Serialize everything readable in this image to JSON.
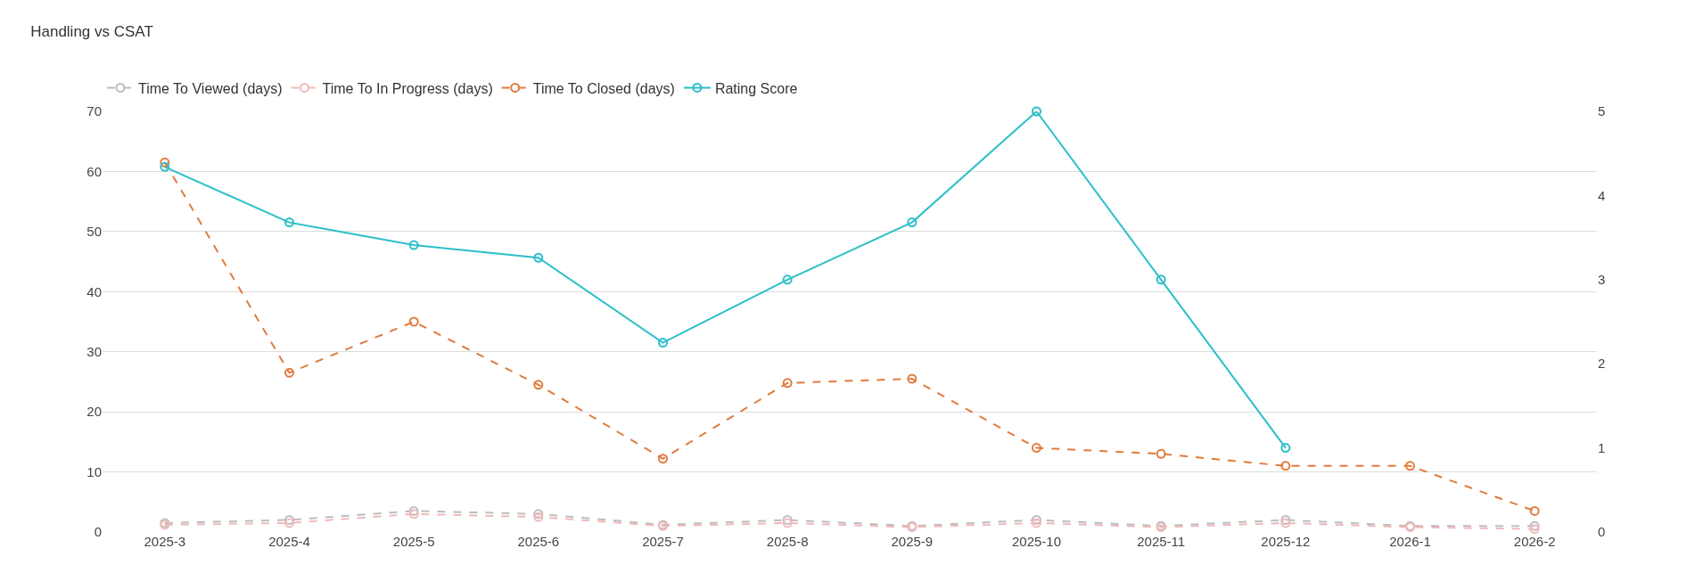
{
  "chart_data": {
    "type": "line",
    "title": "Handling vs CSAT",
    "categories": [
      "2025-3",
      "2025-4",
      "2025-5",
      "2025-6",
      "2025-7",
      "2025-8",
      "2025-9",
      "2025-10",
      "2025-11",
      "2025-12",
      "2026-1",
      "2026-2"
    ],
    "series": [
      {
        "name": "Time To Viewed (days)",
        "color": "#bdbdbd",
        "line_style": "dashed",
        "values": [
          1.5,
          2,
          3.5,
          3,
          1.2,
          2,
          1,
          2,
          1,
          2,
          1,
          1
        ]
      },
      {
        "name": "Time To In Progress (days)",
        "color": "#f2b8b8",
        "line_style": "dashed",
        "values": [
          1.2,
          1.5,
          3,
          2.5,
          1,
          1.5,
          0.8,
          1.5,
          0.8,
          1.5,
          0.8,
          0.5
        ]
      },
      {
        "name": "Time To Closed (days)",
        "color": "#e07b3c",
        "line_style": "dashed",
        "values": [
          61.5,
          26.5,
          35,
          24.5,
          12.2,
          24.8,
          25.5,
          14,
          13,
          11,
          11,
          3.5
        ]
      },
      {
        "name": "Rating Score",
        "color": "#2bbfc9",
        "line_style": "solid",
        "axis": "y2",
        "values": [
          4.34,
          3.68,
          3.41,
          3.26,
          2.25,
          3.0,
          3.68,
          5,
          3.0,
          1.0,
          null,
          null
        ]
      }
    ],
    "ylim": [
      0,
      70
    ],
    "yticks": [
      0,
      10,
      20,
      30,
      40,
      50,
      60,
      70
    ],
    "y2lim": [
      0,
      5
    ],
    "y2ticks": [
      0,
      1,
      2,
      3,
      4,
      5
    ],
    "grid": "y",
    "legend": "top left",
    "marker": "circle"
  }
}
